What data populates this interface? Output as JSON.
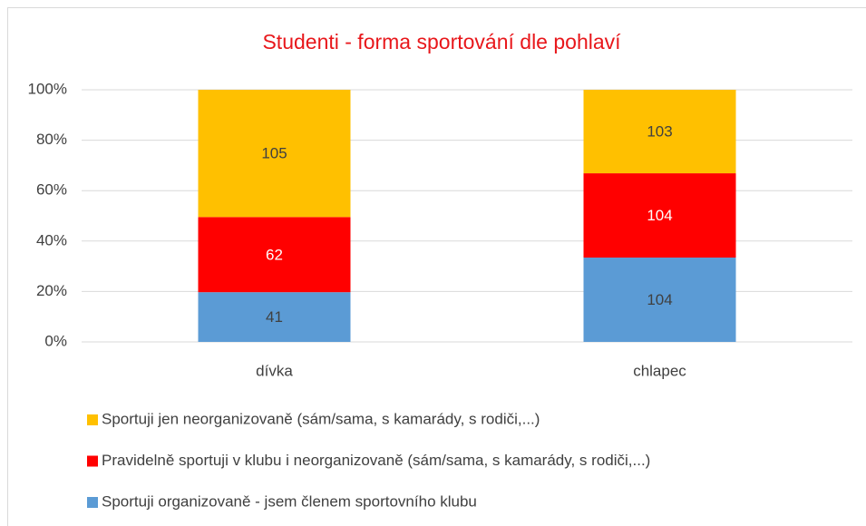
{
  "chart_data": {
    "type": "bar",
    "stacking": "percent",
    "title": "Studenti - forma sportování dle pohlaví",
    "categories": [
      "dívka",
      "chlapec"
    ],
    "series": [
      {
        "name": "Sportuji organizovaně - jsem členem sportovního klubu",
        "color": "#5b9bd5",
        "values": [
          41,
          104
        ]
      },
      {
        "name": "Pravidelně sportuji v klubu i neorganizovaně (sám/sama, s kamarády, s rodiči,...)",
        "color": "#ff0000",
        "values": [
          62,
          104
        ]
      },
      {
        "name": "Sportuji jen neorganizovaně (sám/sama, s kamarády, s rodiči,...)",
        "color": "#ffc000",
        "values": [
          105,
          103
        ]
      }
    ],
    "ylim": [
      0,
      100
    ],
    "yticks": [
      {
        "value": 0,
        "label": "0%"
      },
      {
        "value": 20,
        "label": "20%"
      },
      {
        "value": 40,
        "label": "40%"
      },
      {
        "value": 60,
        "label": "60%"
      },
      {
        "value": 80,
        "label": "80%"
      },
      {
        "value": 100,
        "label": "100%"
      }
    ],
    "grid": true,
    "legend": "bottom"
  }
}
